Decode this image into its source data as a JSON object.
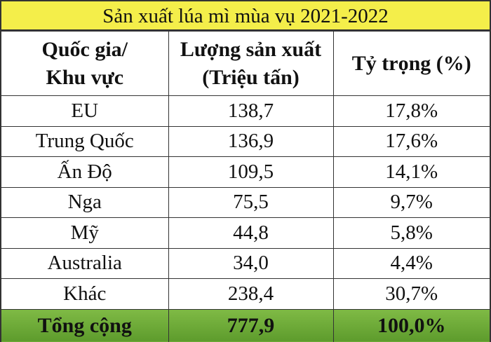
{
  "title": "Sản xuất lúa mì mùa vụ 2021-2022",
  "table": {
    "header": [
      "Quốc gia/\nKhu vực",
      "Lượng sản xuất\n(Triệu tấn)",
      "Tỷ trọng (%)"
    ],
    "rows": [
      [
        "EU",
        "138,7",
        "17,8%"
      ],
      [
        "Trung Quốc",
        "136,9",
        "17,6%"
      ],
      [
        "Ấn Độ",
        "109,5",
        "14,1%"
      ],
      [
        "Nga",
        "75,5",
        "9,7%"
      ],
      [
        "Mỹ",
        "44,8",
        "5,8%"
      ],
      [
        "Australia",
        "34,0",
        "4,4%"
      ],
      [
        "Khác",
        "238,4",
        "30,7%"
      ]
    ],
    "total": [
      "Tổng cộng",
      "777,9",
      "100,0%"
    ]
  }
}
